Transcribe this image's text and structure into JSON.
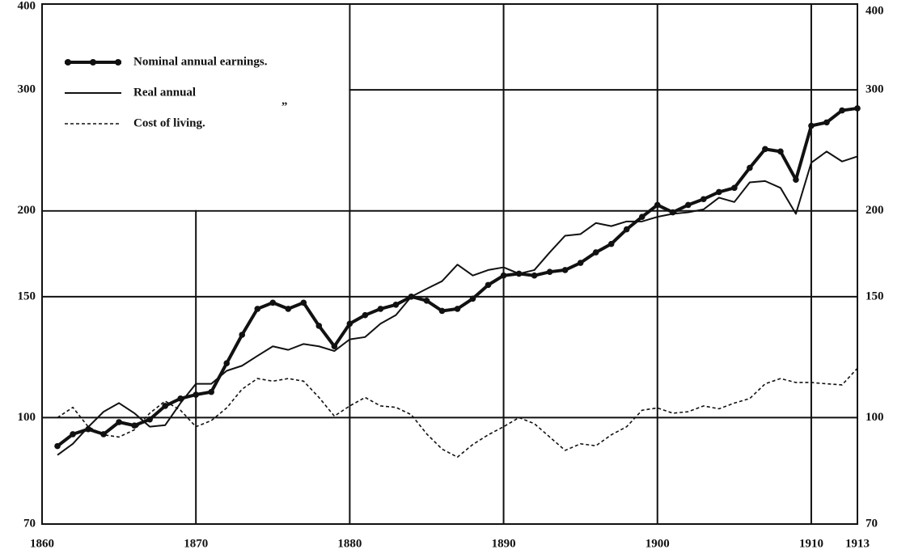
{
  "chart_data": {
    "type": "line",
    "x": [
      1861,
      1862,
      1863,
      1864,
      1865,
      1866,
      1867,
      1868,
      1869,
      1870,
      1871,
      1872,
      1873,
      1874,
      1875,
      1876,
      1877,
      1878,
      1879,
      1880,
      1881,
      1882,
      1883,
      1884,
      1885,
      1886,
      1887,
      1888,
      1889,
      1890,
      1891,
      1892,
      1893,
      1894,
      1895,
      1896,
      1897,
      1898,
      1899,
      1900,
      1901,
      1902,
      1903,
      1904,
      1905,
      1906,
      1907,
      1908,
      1909,
      1910,
      1911,
      1912,
      1913
    ],
    "series": [
      {
        "name": "Nominal annual earnings.",
        "color": "#111",
        "style": "thick-dots",
        "values": [
          90.9,
          94.6,
          96.2,
          94.6,
          98.5,
          97.4,
          99.4,
          104,
          106.6,
          108,
          109,
          120,
          132,
          144,
          147,
          144,
          147,
          136,
          127,
          137,
          141,
          144,
          146,
          150,
          148,
          143,
          144,
          149,
          156,
          161,
          162,
          161,
          163,
          164,
          168,
          174,
          179,
          188,
          196,
          204,
          199,
          204,
          208,
          213,
          216,
          231,
          246,
          244,
          222,
          266,
          269,
          280,
          282
        ]
      },
      {
        "name": "Real annual",
        "color": "#111",
        "style": "solid",
        "values": [
          88.2,
          91.6,
          96.9,
          102,
          105,
          101.5,
          97,
          97.5,
          105,
          112,
          112,
          117,
          119,
          123,
          127,
          125.5,
          128,
          127,
          125,
          130,
          131,
          137,
          141,
          150,
          154,
          158,
          167,
          161,
          164,
          165.5,
          162,
          164,
          174,
          184,
          185,
          192,
          190,
          193,
          193,
          196,
          198,
          199,
          201,
          209,
          206,
          220,
          221,
          216,
          198,
          235,
          244,
          236,
          240
        ]
      },
      {
        "name": "Cost of living.",
        "color": "#111",
        "style": "dashed",
        "values": [
          100,
          103.5,
          97,
          94.4,
          93.7,
          96,
          101.5,
          105.7,
          102.5,
          97,
          99,
          103.3,
          110,
          114,
          113,
          114,
          113,
          107,
          100.5,
          104,
          107,
          104,
          103.5,
          101,
          94.7,
          90,
          87.6,
          91.4,
          94.4,
          97,
          100,
          98,
          93.7,
          89.6,
          91.6,
          91,
          94.4,
          97,
          102.5,
          103.3,
          101.5,
          102,
          104,
          103,
          105,
          106.6,
          112,
          114,
          112.5,
          112.5,
          112,
          111.6,
          118
        ]
      }
    ],
    "legend_ditto": "„",
    "xlim": [
      1860,
      1913
    ],
    "xticks": [
      1860,
      1870,
      1880,
      1890,
      1900,
      1910,
      1913
    ],
    "ylim": [
      70,
      400
    ],
    "yticks": [
      70,
      100,
      150,
      200,
      300,
      400
    ],
    "ylog": true,
    "grid": true
  }
}
